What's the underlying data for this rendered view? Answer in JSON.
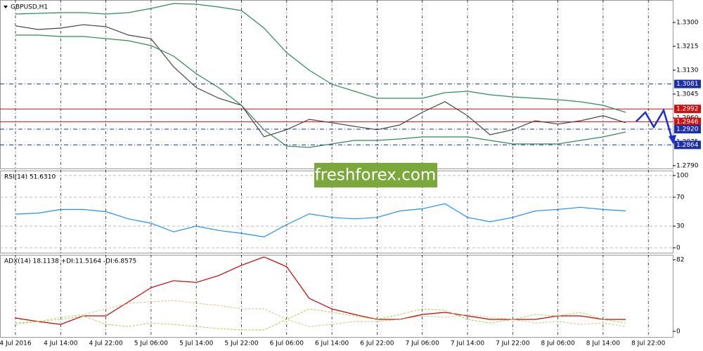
{
  "chart_data": [
    {
      "type": "line",
      "title": "GBPUSD,H1",
      "ylim": [
        1.278,
        1.338
      ],
      "yticks": [
        {
          "value": 1.33,
          "label": "1.3300"
        },
        {
          "value": 1.3215,
          "label": "1.3215"
        },
        {
          "value": 1.313,
          "label": "1.3130"
        },
        {
          "value": 1.3045,
          "label": "1.3045"
        },
        {
          "value": 1.296,
          "label": "1.2960"
        },
        {
          "value": 1.2875,
          "label": "1.2875"
        },
        {
          "value": 1.279,
          "label": "1.2790"
        }
      ],
      "levels": [
        {
          "value": 1.3081,
          "label": "1.3081",
          "color": "#1a2fa8",
          "style": "dashdot"
        },
        {
          "value": 1.2992,
          "label": "1.2992",
          "color": "#d01010",
          "style": "solid"
        },
        {
          "value": 1.2946,
          "label": "1.2946",
          "color": "#d01010",
          "style": "solid"
        },
        {
          "value": 1.292,
          "label": "1.2920",
          "color": "#1a2fa8",
          "style": "dashdot"
        },
        {
          "value": 1.2864,
          "label": "1.2864",
          "color": "#1a2fa8",
          "style": "dashdot"
        }
      ],
      "annotation": "freshforex.com",
      "series": [
        {
          "color": "#444444",
          "style": "solid",
          "values": [
            1.3288,
            1.3275,
            1.328,
            1.3292,
            1.3285,
            1.3255,
            1.3242,
            1.3142,
            1.3068,
            1.303,
            1.3005,
            1.2893,
            1.2918,
            1.2955,
            1.2943,
            1.293,
            1.2918,
            1.2935,
            1.298,
            1.3018,
            1.2968,
            1.29,
            1.2918,
            1.295,
            1.2938,
            1.295,
            1.2968,
            1.2943,
            null
          ]
        },
        {
          "color": "#2e8b57",
          "style": "solid",
          "values": [
            1.333,
            1.33325,
            1.3335,
            1.3335,
            1.333,
            1.3335,
            1.335,
            1.33675,
            1.3365,
            1.3355,
            1.33425,
            1.328,
            1.31925,
            1.313,
            1.308,
            1.3055,
            1.303,
            1.303,
            1.303,
            1.305,
            1.3055,
            1.30425,
            1.3035,
            1.303,
            1.3025,
            1.30175,
            1.3005,
            1.298,
            null
          ]
        },
        {
          "color": "#2e8b57",
          "style": "solid",
          "values": [
            1.3255,
            1.3255,
            1.325,
            1.325,
            1.32425,
            1.3235,
            1.32175,
            1.318,
            1.31175,
            1.30675,
            1.3005,
            1.29175,
            1.286,
            1.2855,
            1.28675,
            1.288,
            1.288,
            1.2885,
            1.28925,
            1.28925,
            1.28925,
            1.288,
            1.28675,
            1.28675,
            1.28675,
            1.288,
            1.28925,
            1.291,
            null
          ]
        }
      ]
    },
    {
      "type": "line",
      "title": "RSI(14) 51.6310",
      "ylim": [
        -6.8,
        106.8
      ],
      "yticks": [
        100,
        70,
        30,
        0
      ],
      "grid": true,
      "series": [
        {
          "color": "#1e90ff",
          "style": "solid",
          "values": [
            46.6,
            48,
            53,
            53,
            50,
            40,
            34,
            22,
            30,
            24,
            20,
            15,
            32,
            47,
            42,
            40,
            42,
            51,
            54,
            61,
            42,
            36,
            42,
            51,
            53,
            56,
            53,
            51,
            null
          ]
        }
      ]
    },
    {
      "type": "line",
      "title": "ADX(14) 18.1138 +DI:11.5164 -DI:6.8575",
      "ylim": [
        -6.4,
        87.6
      ],
      "yticks": [
        82,
        0
      ],
      "categories": [
        "4 Jul 2016",
        null,
        "4 Jul 14:00",
        null,
        "4 Jul 22:00",
        null,
        "5 Jul 06:00",
        null,
        "5 Jul 14:00",
        null,
        "5 Jul 22:00",
        null,
        "6 Jul 06:00",
        null,
        "6 Jul 14:00",
        null,
        "6 Jul 22:00",
        null,
        "7 Jul 06:00",
        null,
        "7 Jul 14:00",
        null,
        "7 Jul 22:00",
        null,
        "8 Jul 06:00",
        null,
        "8 Jul 14:00",
        null,
        "8 Jul 22:00"
      ],
      "series": [
        {
          "color": "#cc0000",
          "style": "solid",
          "values": [
            15.3,
            11.3,
            8,
            17.7,
            17.7,
            33.8,
            50,
            58,
            56,
            64,
            75.6,
            85.2,
            74,
            37.8,
            25.7,
            19.3,
            13.7,
            13.7,
            19.3,
            21.7,
            17.7,
            13.7,
            13.7,
            13.7,
            17.7,
            17.7,
            13.7,
            13.7,
            null
          ]
        },
        {
          "color": "#9acd32",
          "style": "dashed",
          "values": [
            9.6,
            11.3,
            13.7,
            17.7,
            8,
            5.6,
            9.6,
            8,
            5.6,
            3.2,
            1.6,
            1.6,
            13.7,
            25.7,
            21.7,
            17.7,
            13.7,
            19.3,
            25.7,
            24.1,
            13.7,
            9.6,
            13.7,
            19.3,
            17.7,
            21.7,
            13.7,
            9.6,
            null
          ]
        },
        {
          "color": "#d2bf70",
          "style": "dashed",
          "values": [
            8,
            11.3,
            16.1,
            19.3,
            25.7,
            32.2,
            33.8,
            35.4,
            32.2,
            29.7,
            25.7,
            25.7,
            13.7,
            5.6,
            8,
            11.3,
            11.3,
            13.7,
            17.7,
            16.1,
            19.3,
            16.1,
            13.7,
            9.6,
            11.3,
            8,
            9.6,
            5.6,
            null
          ]
        }
      ]
    }
  ]
}
